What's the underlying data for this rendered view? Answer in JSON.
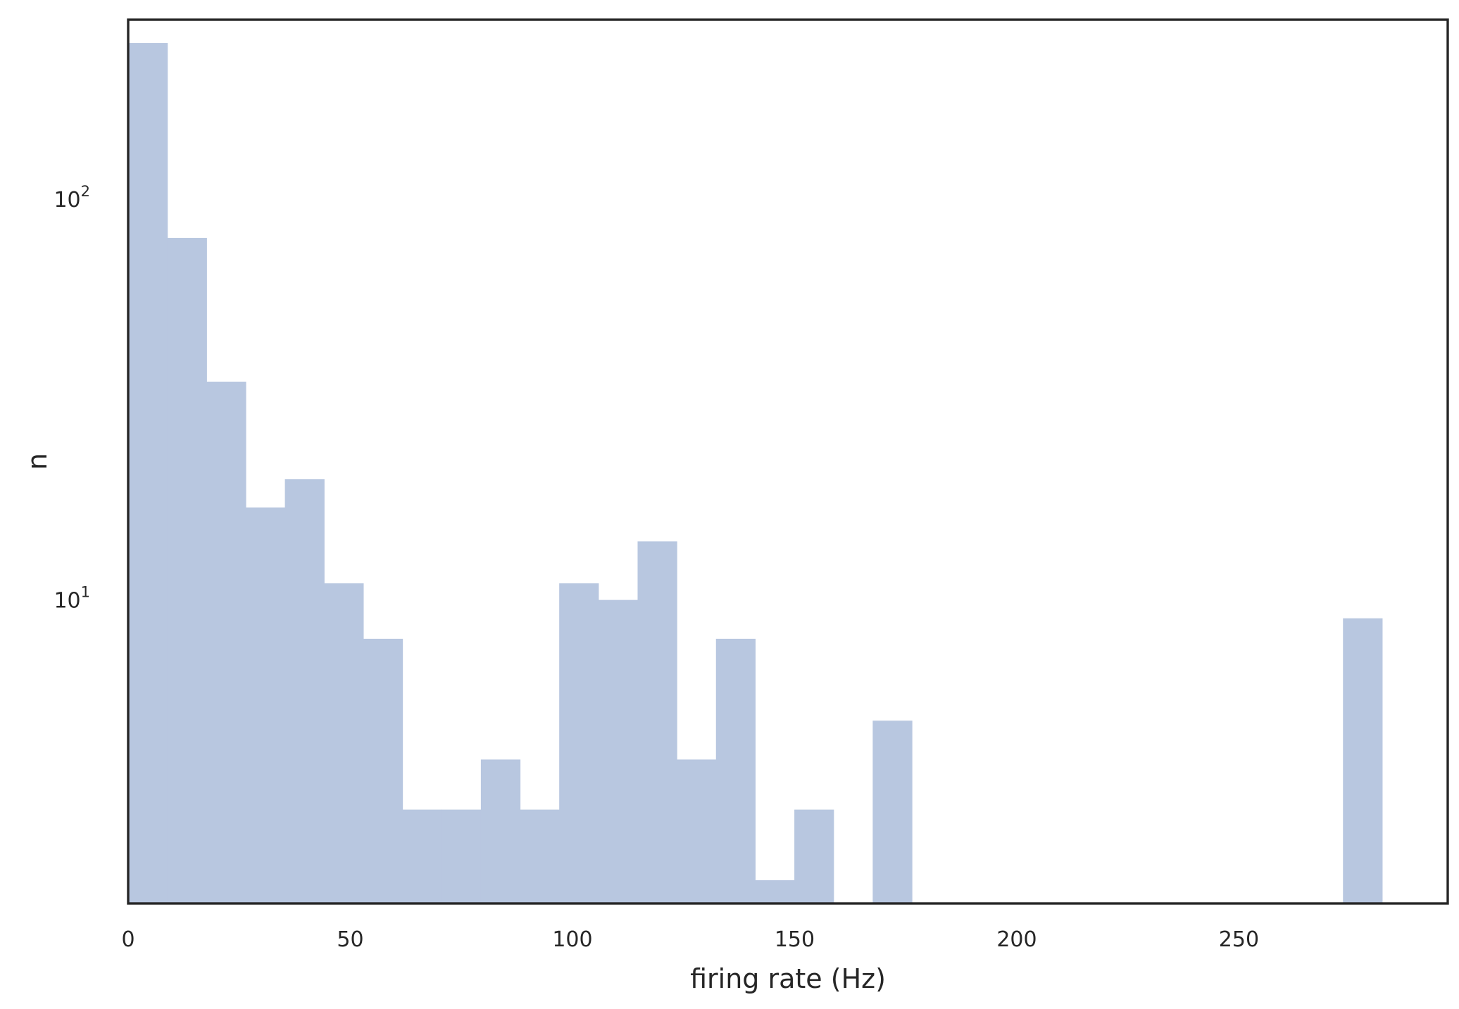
{
  "chart_data": {
    "type": "bar",
    "subtype": "histogram",
    "title": "",
    "xlabel": "firing rate (Hz)",
    "ylabel": "n",
    "yscale": "log",
    "xlim": [
      0,
      297
    ],
    "ylim": [
      1.75,
      280
    ],
    "grid": false,
    "legend": "none",
    "bar_color": "#b8c7e0",
    "frame_color": "#262626",
    "xticks": [
      {
        "value": 0,
        "label": "0"
      },
      {
        "value": 50,
        "label": "50"
      },
      {
        "value": 100,
        "label": "100"
      },
      {
        "value": 150,
        "label": "150"
      },
      {
        "value": 200,
        "label": "200"
      },
      {
        "value": 250,
        "label": "250"
      }
    ],
    "yticks": [
      {
        "value": 10,
        "base": "10",
        "exp": "1"
      },
      {
        "value": 100,
        "base": "10",
        "exp": "2"
      }
    ],
    "bin_width": 8.82,
    "bin_starts": [
      0,
      8.82,
      17.64,
      26.46,
      35.28,
      44.1,
      52.92,
      61.74,
      70.56,
      79.38,
      88.2,
      97.02,
      105.84,
      114.66,
      123.48,
      132.3,
      141.12,
      149.94,
      158.76,
      167.58,
      176.4,
      185.22,
      194.04,
      202.86,
      211.68,
      220.5,
      229.32,
      238.14,
      246.96,
      255.78,
      264.6,
      273.42
    ],
    "counts": [
      245,
      80,
      35,
      17,
      20,
      11,
      8,
      3,
      3,
      4,
      3,
      11,
      10,
      14,
      4,
      8,
      2,
      3,
      0,
      5,
      0,
      0,
      0,
      0,
      0,
      0,
      0,
      0,
      0,
      0,
      0,
      9
    ]
  }
}
